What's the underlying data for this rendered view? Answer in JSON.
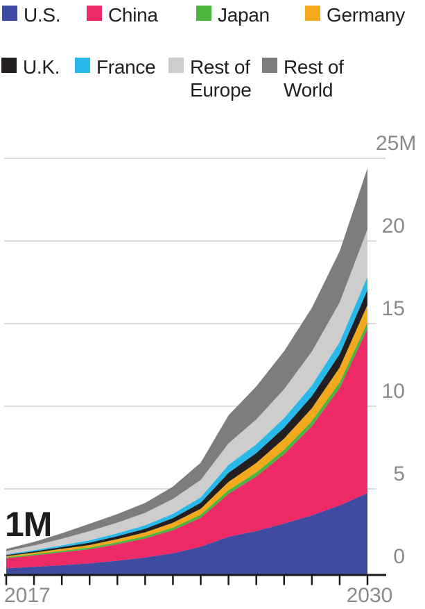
{
  "legend": {
    "rows": [
      {
        "items": [
          {
            "label": "U.S.",
            "color": "#3f4aa1"
          },
          {
            "label": "China",
            "color": "#ee2a66"
          },
          {
            "label": "Japan",
            "color": "#4cb43f"
          },
          {
            "label": "Germany",
            "color": "#f2a91d"
          }
        ]
      },
      {
        "items": [
          {
            "label": "U.K.",
            "color": "#231f20"
          },
          {
            "label": "France",
            "color": "#29b8ea"
          },
          {
            "label": "Rest of Europe",
            "color": "#cdcdcd"
          },
          {
            "label": "Rest of World",
            "color": "#7d7d7d"
          }
        ]
      }
    ]
  },
  "chart_data": {
    "type": "area",
    "stacked": true,
    "title": "",
    "xlabel": "",
    "ylabel": "",
    "units": "millions of vehicles",
    "x": [
      2017,
      2018,
      2019,
      2020,
      2021,
      2022,
      2023,
      2024,
      2025,
      2026,
      2027,
      2028,
      2029,
      2030
    ],
    "series": [
      {
        "name": "U.S.",
        "color": "#3f4aa1",
        "values": [
          0.2,
          0.28,
          0.38,
          0.5,
          0.65,
          0.85,
          1.1,
          1.5,
          2.1,
          2.45,
          2.9,
          3.4,
          4.0,
          4.75
        ]
      },
      {
        "name": "China",
        "color": "#ee2a66",
        "values": [
          0.6,
          0.7,
          0.78,
          0.85,
          1.0,
          1.15,
          1.4,
          1.75,
          2.6,
          3.3,
          4.2,
          5.4,
          7.1,
          9.95
        ]
      },
      {
        "name": "Japan",
        "color": "#4cb43f",
        "values": [
          0.06,
          0.07,
          0.09,
          0.1,
          0.12,
          0.14,
          0.16,
          0.19,
          0.22,
          0.24,
          0.27,
          0.3,
          0.34,
          0.38
        ]
      },
      {
        "name": "Germany",
        "color": "#f2a91d",
        "values": [
          0.07,
          0.09,
          0.12,
          0.15,
          0.19,
          0.23,
          0.29,
          0.36,
          0.5,
          0.58,
          0.67,
          0.78,
          0.9,
          1.05
        ]
      },
      {
        "name": "U.K.",
        "color": "#231f20",
        "values": [
          0.06,
          0.08,
          0.11,
          0.15,
          0.18,
          0.22,
          0.28,
          0.36,
          0.55,
          0.6,
          0.66,
          0.73,
          0.81,
          0.9
        ]
      },
      {
        "name": "France",
        "color": "#29b8ea",
        "values": [
          0.05,
          0.07,
          0.1,
          0.14,
          0.17,
          0.21,
          0.26,
          0.33,
          0.48,
          0.53,
          0.58,
          0.65,
          0.73,
          0.82
        ]
      },
      {
        "name": "Rest of Europe",
        "color": "#cdcdcd",
        "values": [
          0.2,
          0.28,
          0.4,
          0.55,
          0.65,
          0.75,
          0.9,
          1.05,
          1.3,
          1.5,
          1.75,
          2.05,
          2.4,
          2.85
        ]
      },
      {
        "name": "Rest of World",
        "color": "#7d7d7d",
        "values": [
          0.12,
          0.22,
          0.33,
          0.45,
          0.52,
          0.6,
          0.75,
          1.05,
          1.7,
          2.0,
          2.3,
          2.65,
          3.1,
          3.7
        ]
      }
    ],
    "ylim": [
      0,
      25
    ],
    "yticks": [
      {
        "value": 25,
        "label": "25M"
      },
      {
        "value": 20,
        "label": "20"
      },
      {
        "value": 15,
        "label": "15"
      },
      {
        "value": 10,
        "label": "10"
      },
      {
        "value": 5,
        "label": "5"
      },
      {
        "value": 0,
        "label": "0"
      }
    ],
    "xtick_labels_shown": [
      "2017",
      "2030"
    ],
    "annotation": "1M",
    "grid": true,
    "legend_position": "top"
  }
}
